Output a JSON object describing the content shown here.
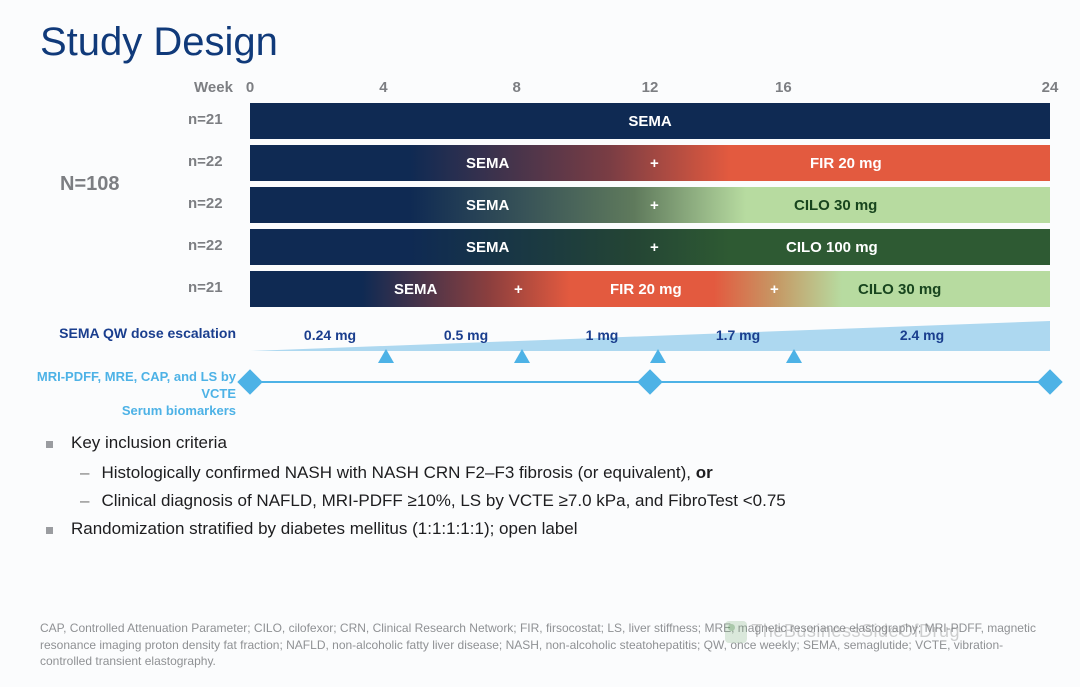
{
  "title": "Study Design",
  "timeline": {
    "label": "Week",
    "ticks": [
      {
        "v": 0,
        "pct": 0
      },
      {
        "v": 4,
        "pct": 16.67
      },
      {
        "v": 8,
        "pct": 33.33
      },
      {
        "v": 12,
        "pct": 50
      },
      {
        "v": 16,
        "pct": 66.67
      },
      {
        "v": 24,
        "pct": 100
      }
    ]
  },
  "total_label": "N=108",
  "arms": [
    {
      "n": "n=21",
      "type": "sema_only",
      "sema_label": "SEMA"
    },
    {
      "n": "n=22",
      "type": "sema_fir",
      "sema_label": "SEMA",
      "right_label": "FIR 20 mg",
      "right_text_color": "#ffffff"
    },
    {
      "n": "n=22",
      "type": "sema_cilo_lt",
      "sema_label": "SEMA",
      "right_label": "CILO 30 mg",
      "right_text_color": "#18451e"
    },
    {
      "n": "n=22",
      "type": "sema_cilo_dk",
      "sema_label": "SEMA",
      "right_label": "CILO 100 mg",
      "right_text_color": "#ffffff"
    },
    {
      "n": "n=21",
      "type": "triple",
      "sema_label": "SEMA",
      "mid_label": "FIR 20 mg",
      "right_label": "CILO 30 mg",
      "right_text_color": "#18451e"
    }
  ],
  "colors": {
    "navy": "#0f2a53",
    "red": "#e35a3f",
    "green_dk": "#2e5a33",
    "green_lt": "#b7dba0",
    "wedge": "#add8f0",
    "accent": "#4db2e6"
  },
  "dose": {
    "label": "SEMA QW dose escalation",
    "steps": [
      {
        "t": "0.24 mg",
        "pct": 10
      },
      {
        "t": "0.5 mg",
        "pct": 27
      },
      {
        "t": "1 mg",
        "pct": 44
      },
      {
        "t": "1.7 mg",
        "pct": 61
      },
      {
        "t": "2.4 mg",
        "pct": 84
      }
    ],
    "triangles_pct": [
      17,
      34,
      51,
      68
    ]
  },
  "biomarker": {
    "line1": "MRI-PDFF, MRE, CAP, and LS by VCTE",
    "line2": "Serum biomarkers",
    "diamonds_pct": [
      0,
      50,
      100
    ]
  },
  "bullets": {
    "head1": "Key inclusion criteria",
    "sub1": "Histologically confirmed NASH with NASH CRN F2–F3 fibrosis (or equivalent), or",
    "sub2": "Clinical diagnosis of NAFLD, MRI-PDFF ≥10%, LS by VCTE ≥7.0 kPa, and FibroTest <0.75",
    "head2": "Randomization stratified by diabetes mellitus (1:1:1:1:1); open label"
  },
  "footnote": "CAP, Controlled Attenuation Parameter; CILO, cilofexor; CRN, Clinical Research Network; FIR, firsocostat; LS, liver stiffness; MRE, magnetic resonance elastography; MRI-PDFF, magnetic resonance imaging proton density fat fraction; NAFLD, non-alcoholic fatty liver disease; NASH, non-alcoholic steatohepatitis; QW, once weekly; SEMA, semaglutide; VCTE, vibration-controlled transient elastography.",
  "watermark": "TheBusinessSideOfDrug"
}
